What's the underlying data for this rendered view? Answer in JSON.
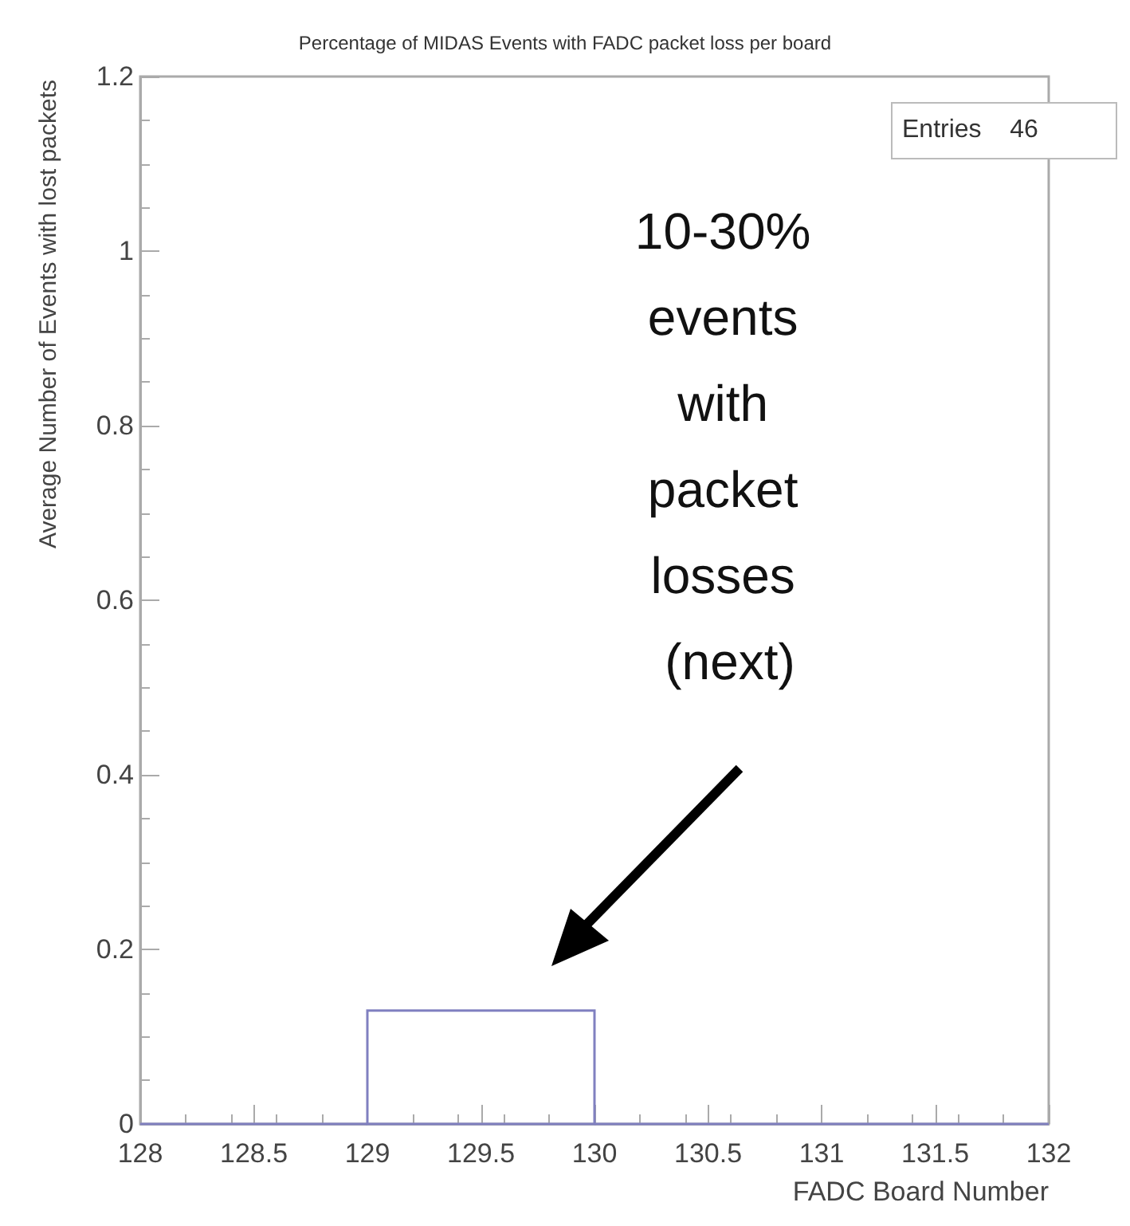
{
  "chart_data": {
    "type": "histogram",
    "title": "Percentage of MIDAS Events with FADC packet loss per board",
    "xlabel": "FADC Board Number",
    "ylabel": "Average Number of Events with lost packets",
    "bins": [
      128,
      129,
      130,
      131,
      132
    ],
    "values": [
      0,
      0.13,
      0,
      0
    ],
    "color": "#8080c0",
    "xlim": [
      128,
      132
    ],
    "xticks": [
      128,
      128.5,
      129,
      129.5,
      130,
      130.5,
      131,
      131.5,
      132
    ],
    "ylim": [
      0,
      1.2
    ],
    "yticks": [
      0,
      0.2,
      0.4,
      0.6,
      0.8,
      1,
      1.2
    ],
    "grid": false,
    "annotations": [
      "10-30% events with packet losses (next)",
      "Entries    46"
    ]
  }
}
